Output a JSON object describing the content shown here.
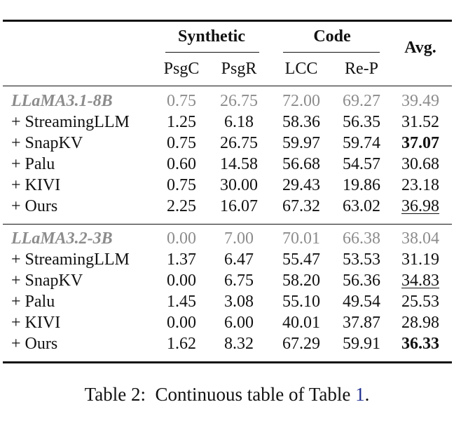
{
  "table": {
    "groups": [
      {
        "label": "Synthetic"
      },
      {
        "label": "Code"
      }
    ],
    "avg_label": "Avg.",
    "columns": [
      "PsgC",
      "PsgR",
      "LCC",
      "Re-P"
    ],
    "sections": [
      {
        "model": "LLaMA3.1-8B",
        "baseline": [
          "0.75",
          "26.75",
          "72.00",
          "69.27",
          "39.49"
        ],
        "rows": [
          {
            "method": "+ StreamingLLM",
            "values": [
              "1.25",
              "6.18",
              "58.36",
              "56.35",
              "31.52"
            ],
            "avg_style": "normal"
          },
          {
            "method": "+ SnapKV",
            "values": [
              "0.75",
              "26.75",
              "59.97",
              "59.74",
              "37.07"
            ],
            "avg_style": "bold"
          },
          {
            "method": "+ Palu",
            "values": [
              "0.60",
              "14.58",
              "56.68",
              "54.57",
              "30.68"
            ],
            "avg_style": "normal"
          },
          {
            "method": "+ KIVI",
            "values": [
              "0.75",
              "30.00",
              "29.43",
              "19.86",
              "23.18"
            ],
            "avg_style": "normal"
          },
          {
            "method": "+ Ours",
            "values": [
              "2.25",
              "16.07",
              "67.32",
              "63.02",
              "36.98"
            ],
            "avg_style": "underline"
          }
        ]
      },
      {
        "model": "LLaMA3.2-3B",
        "baseline": [
          "0.00",
          "7.00",
          "70.01",
          "66.38",
          "38.04"
        ],
        "rows": [
          {
            "method": "+ StreamingLLM",
            "values": [
              "1.37",
              "6.47",
              "55.47",
              "53.53",
              "31.19"
            ],
            "avg_style": "normal"
          },
          {
            "method": "+ SnapKV",
            "values": [
              "0.00",
              "6.75",
              "58.20",
              "56.36",
              "34.83"
            ],
            "avg_style": "underline"
          },
          {
            "method": "+ Palu",
            "values": [
              "1.45",
              "3.08",
              "55.10",
              "49.54",
              "25.53"
            ],
            "avg_style": "normal"
          },
          {
            "method": "+ KIVI",
            "values": [
              "0.00",
              "6.00",
              "40.01",
              "37.87",
              "28.98"
            ],
            "avg_style": "normal"
          },
          {
            "method": "+ Ours",
            "values": [
              "1.62",
              "8.32",
              "67.29",
              "59.91",
              "36.33"
            ],
            "avg_style": "bold"
          }
        ]
      }
    ]
  },
  "caption": {
    "prefix": "Table 2:",
    "text": "Continuous table of Table",
    "ref": "1",
    "suffix": "."
  }
}
